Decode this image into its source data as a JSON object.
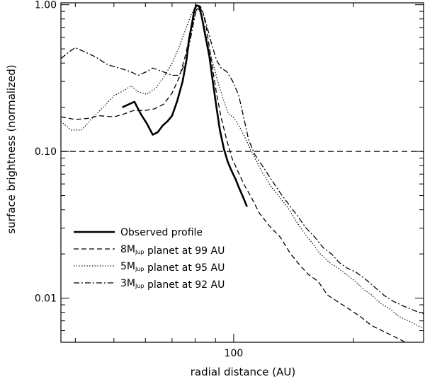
{
  "chart_data": {
    "type": "line",
    "title": "",
    "xlabel": "radial distance (AU)",
    "ylabel": "surface brightness (normalized)",
    "xscale": "log",
    "yscale": "log",
    "xlim": [
      36.8,
      300
    ],
    "ylim": [
      0.005,
      1.03
    ],
    "x_tick_labels": [
      {
        "value": 100,
        "label": "100"
      }
    ],
    "y_tick_labels": [
      {
        "value": 0.01,
        "label": "0.01"
      },
      {
        "value": 0.1,
        "label": "0.10"
      },
      {
        "value": 1.0,
        "label": "1.00"
      }
    ],
    "grid": false,
    "legend_position": "lower-left",
    "reference_line": {
      "y": 0.1,
      "style": "dashed"
    },
    "series": [
      {
        "name": "Observed profile",
        "style": "solid-thick",
        "points": [
          [
            52.5,
            0.2
          ],
          [
            54.6,
            0.21
          ],
          [
            56.3,
            0.218
          ],
          [
            58.4,
            0.18
          ],
          [
            60.5,
            0.155
          ],
          [
            62.6,
            0.13
          ],
          [
            64.4,
            0.135
          ],
          [
            66.3,
            0.15
          ],
          [
            68.1,
            0.16
          ],
          [
            70,
            0.175
          ],
          [
            72.1,
            0.22
          ],
          [
            74.4,
            0.3
          ],
          [
            76.1,
            0.42
          ],
          [
            77.2,
            0.58
          ],
          [
            78.6,
            0.75
          ],
          [
            79.6,
            0.92
          ],
          [
            80.6,
            0.99
          ],
          [
            81.8,
            0.98
          ],
          [
            83.1,
            0.83
          ],
          [
            84.8,
            0.62
          ],
          [
            86.8,
            0.45
          ],
          [
            88.6,
            0.3
          ],
          [
            90.5,
            0.2
          ],
          [
            92.3,
            0.14
          ],
          [
            94.4,
            0.105
          ],
          [
            96.6,
            0.085
          ],
          [
            98.5,
            0.075
          ],
          [
            101,
            0.065
          ],
          [
            103,
            0.057
          ],
          [
            105.5,
            0.049
          ],
          [
            108,
            0.042
          ]
        ]
      },
      {
        "name": "8M planet at 99 AU",
        "style": "dashed",
        "points": [
          [
            36.8,
            0.172
          ],
          [
            40,
            0.165
          ],
          [
            43,
            0.168
          ],
          [
            46,
            0.175
          ],
          [
            50,
            0.172
          ],
          [
            53,
            0.18
          ],
          [
            56,
            0.19
          ],
          [
            59.7,
            0.19
          ],
          [
            63.2,
            0.195
          ],
          [
            66.7,
            0.21
          ],
          [
            70,
            0.25
          ],
          [
            73,
            0.32
          ],
          [
            75.6,
            0.45
          ],
          [
            77.9,
            0.65
          ],
          [
            79.6,
            0.85
          ],
          [
            81.3,
            0.97
          ],
          [
            82.4,
            0.98
          ],
          [
            83.6,
            0.9
          ],
          [
            85.2,
            0.72
          ],
          [
            86.8,
            0.52
          ],
          [
            88.6,
            0.36
          ],
          [
            90.5,
            0.25
          ],
          [
            93,
            0.17
          ],
          [
            96,
            0.12
          ],
          [
            99,
            0.09
          ],
          [
            102,
            0.075
          ],
          [
            106,
            0.06
          ],
          [
            111,
            0.048
          ],
          [
            116,
            0.038
          ],
          [
            123,
            0.031
          ],
          [
            131,
            0.026
          ],
          [
            139,
            0.02
          ],
          [
            146,
            0.017
          ],
          [
            154,
            0.0145
          ],
          [
            163,
            0.013
          ],
          [
            172,
            0.0105
          ],
          [
            182,
            0.0095
          ],
          [
            194,
            0.0085
          ],
          [
            208,
            0.0075
          ],
          [
            222,
            0.0065
          ],
          [
            236,
            0.006
          ],
          [
            252,
            0.0055
          ],
          [
            270,
            0.005
          ]
        ]
      },
      {
        "name": "5M planet at 95 AU",
        "style": "dotted",
        "points": [
          [
            36.8,
            0.16
          ],
          [
            39,
            0.14
          ],
          [
            41.5,
            0.14
          ],
          [
            44.2,
            0.17
          ],
          [
            47,
            0.2
          ],
          [
            50,
            0.24
          ],
          [
            53,
            0.26
          ],
          [
            55.2,
            0.28
          ],
          [
            57.5,
            0.255
          ],
          [
            60.5,
            0.245
          ],
          [
            63.7,
            0.27
          ],
          [
            66.7,
            0.32
          ],
          [
            70,
            0.4
          ],
          [
            73,
            0.52
          ],
          [
            75.6,
            0.67
          ],
          [
            78.2,
            0.86
          ],
          [
            80.3,
            0.94
          ],
          [
            82,
            0.92
          ],
          [
            84,
            0.75
          ],
          [
            86,
            0.55
          ],
          [
            88.6,
            0.4
          ],
          [
            91.2,
            0.3
          ],
          [
            94,
            0.23
          ],
          [
            97,
            0.18
          ],
          [
            100,
            0.17
          ],
          [
            103,
            0.15
          ],
          [
            106,
            0.13
          ],
          [
            109,
            0.11
          ],
          [
            113,
            0.09
          ],
          [
            118,
            0.072
          ],
          [
            124,
            0.058
          ],
          [
            131,
            0.048
          ],
          [
            138,
            0.04
          ],
          [
            144,
            0.033
          ],
          [
            150,
            0.028
          ],
          [
            157,
            0.024
          ],
          [
            165,
            0.02
          ],
          [
            174,
            0.0175
          ],
          [
            183,
            0.016
          ],
          [
            192,
            0.0145
          ],
          [
            202,
            0.013
          ],
          [
            212,
            0.0115
          ],
          [
            222,
            0.0105
          ],
          [
            234,
            0.0092
          ],
          [
            246,
            0.0085
          ],
          [
            260,
            0.0075
          ],
          [
            275,
            0.007
          ],
          [
            290,
            0.0065
          ],
          [
            300,
            0.0062
          ]
        ]
      },
      {
        "name": "3M planet at 92 AU",
        "style": "dash-dot",
        "points": [
          [
            36.8,
            0.43
          ],
          [
            38.7,
            0.48
          ],
          [
            40,
            0.51
          ],
          [
            42,
            0.48
          ],
          [
            45,
            0.44
          ],
          [
            48.2,
            0.39
          ],
          [
            51.5,
            0.37
          ],
          [
            55,
            0.35
          ],
          [
            57.5,
            0.33
          ],
          [
            60.5,
            0.35
          ],
          [
            62.6,
            0.37
          ],
          [
            66.3,
            0.35
          ],
          [
            70,
            0.33
          ],
          [
            73,
            0.33
          ],
          [
            75.6,
            0.4
          ],
          [
            78.2,
            0.62
          ],
          [
            80.3,
            0.9
          ],
          [
            81.8,
            0.97
          ],
          [
            83.6,
            0.89
          ],
          [
            85.6,
            0.72
          ],
          [
            88,
            0.54
          ],
          [
            90.5,
            0.42
          ],
          [
            93,
            0.37
          ],
          [
            96,
            0.35
          ],
          [
            99.5,
            0.3
          ],
          [
            103,
            0.24
          ],
          [
            106,
            0.17
          ],
          [
            109,
            0.12
          ],
          [
            113,
            0.095
          ],
          [
            118,
            0.08
          ],
          [
            124,
            0.065
          ],
          [
            131,
            0.052
          ],
          [
            138,
            0.043
          ],
          [
            145,
            0.036
          ],
          [
            152,
            0.03
          ],
          [
            160,
            0.026
          ],
          [
            168,
            0.022
          ],
          [
            176,
            0.02
          ],
          [
            184,
            0.0175
          ],
          [
            193,
            0.016
          ],
          [
            203,
            0.015
          ],
          [
            214,
            0.0135
          ],
          [
            225,
            0.012
          ],
          [
            238,
            0.0105
          ],
          [
            252,
            0.0095
          ],
          [
            268,
            0.0088
          ],
          [
            285,
            0.0082
          ],
          [
            300,
            0.0078
          ]
        ]
      }
    ],
    "legend": {
      "entries": [
        {
          "style": "solid-thick",
          "parts": [
            {
              "t": "Observed profile"
            }
          ]
        },
        {
          "style": "dashed",
          "parts": [
            {
              "t": "8M"
            },
            {
              "t": "Jup",
              "sub": true
            },
            {
              "t": " planet at 99 AU"
            }
          ]
        },
        {
          "style": "dotted",
          "parts": [
            {
              "t": "5M"
            },
            {
              "t": "Jup",
              "sub": true
            },
            {
              "t": " planet at 95 AU"
            }
          ]
        },
        {
          "style": "dash-dot",
          "parts": [
            {
              "t": "3M"
            },
            {
              "t": "Jup",
              "sub": true
            },
            {
              "t": " planet at 92 AU"
            }
          ]
        }
      ]
    }
  }
}
